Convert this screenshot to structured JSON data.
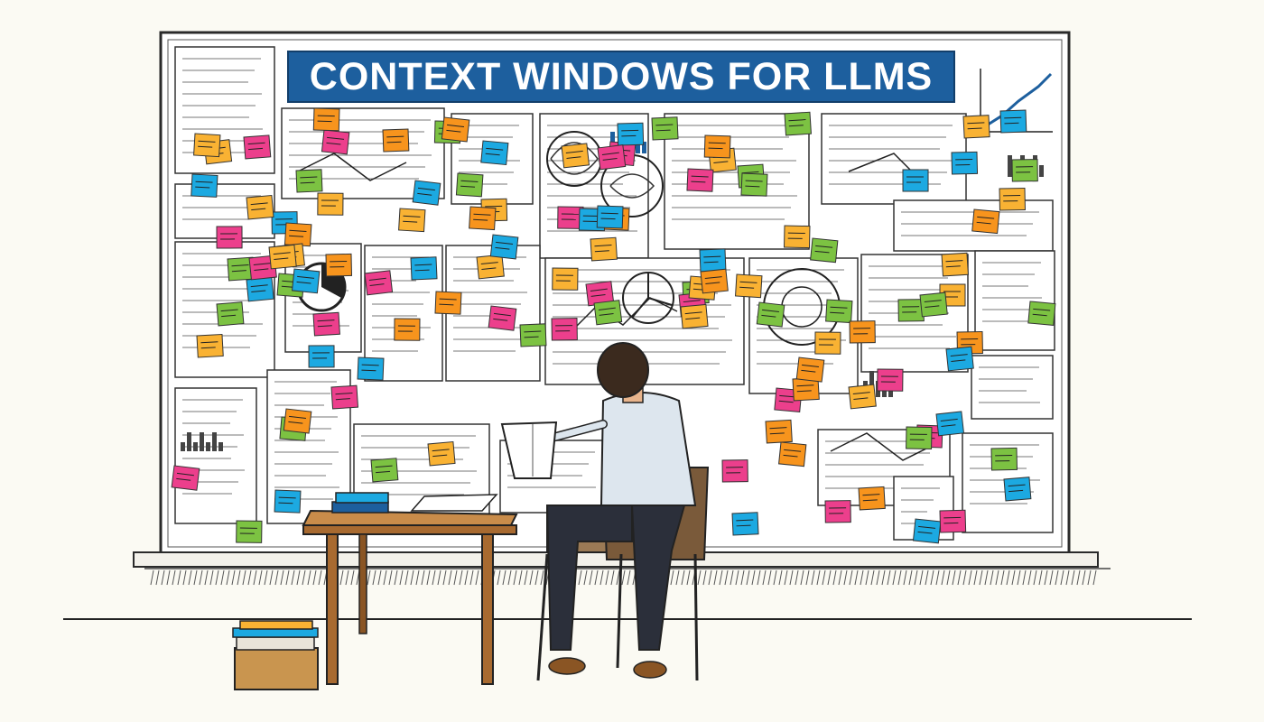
{
  "title": "CONTEXT WINDOWS FOR LLMS",
  "colors": {
    "banner": "#1d5f9e",
    "sticky_notes": [
      "#f7941d",
      "#1ca9e1",
      "#ec3f8c",
      "#7cc242",
      "#f9b233"
    ],
    "board": "#ffffff",
    "background": "#fbfaf3"
  },
  "icons": [
    "bar-chart-icon",
    "pie-chart-icon",
    "line-chart-icon",
    "brain-diagram-icon",
    "flowchart-icon"
  ]
}
